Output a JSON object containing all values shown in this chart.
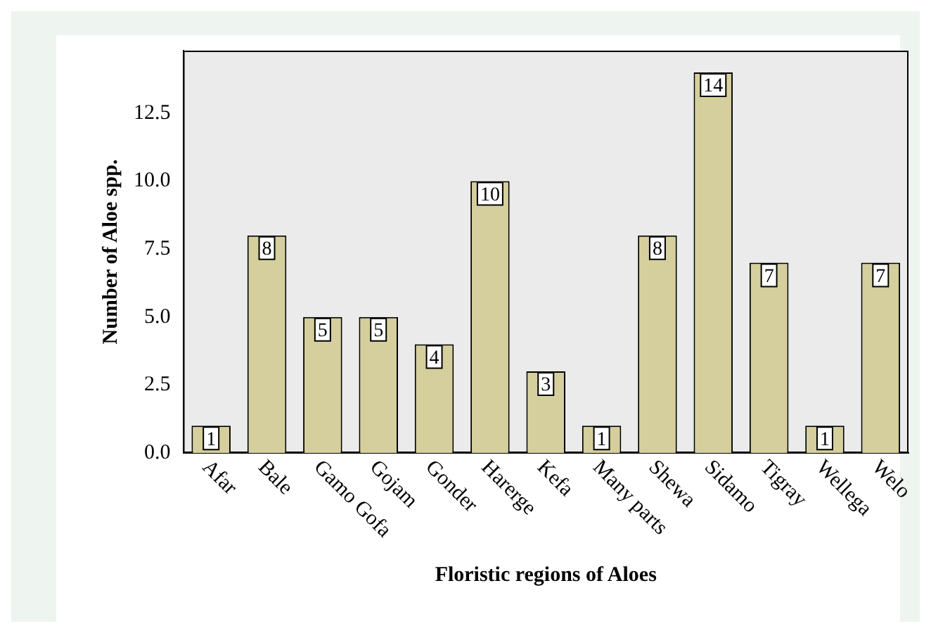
{
  "chart_data": {
    "type": "bar",
    "xlabel": "Floristic regions of Aloes",
    "ylabel": "Number of Aloe spp.",
    "categories": [
      "Afar",
      "Bale",
      "Gamo Gofa",
      "Gojam",
      "Gonder",
      "Harerge",
      "Kefa",
      "Many parts",
      "Shewa",
      "Sidamo",
      "Tigray",
      "Wellega",
      "Welo"
    ],
    "values": [
      1,
      8,
      5,
      5,
      4,
      10,
      3,
      1,
      8,
      14,
      7,
      1,
      7
    ],
    "color": "#d4cf9c",
    "ylim": [
      0,
      14.8
    ],
    "yticks": [
      {
        "value": 0,
        "label": "0.0"
      },
      {
        "value": 2.5,
        "label": "2.5"
      },
      {
        "value": 5,
        "label": "5.0"
      },
      {
        "value": 7.5,
        "label": "7.5"
      },
      {
        "value": 10,
        "label": "10.0"
      },
      {
        "value": 12.5,
        "label": "12.5"
      }
    ],
    "data_labels": true,
    "grid": false,
    "legend": false
  }
}
